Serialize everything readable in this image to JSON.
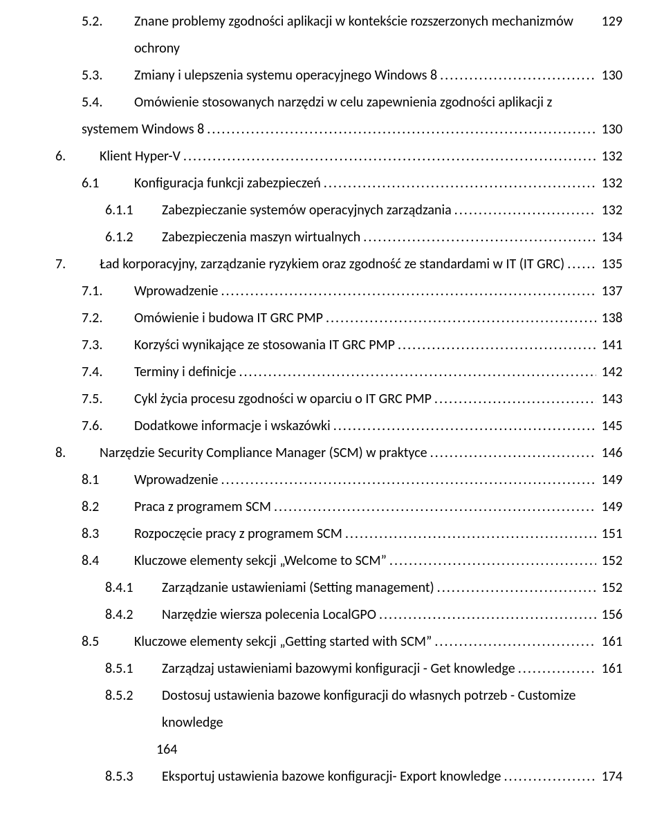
{
  "entries": [
    {
      "lvl": 2,
      "num": "5.2.",
      "title": "Znane problemy zgodności aplikacji w kontekście rozszerzonych mechanizmów ochrony",
      "page": "129",
      "nolead": true
    },
    {
      "lvl": 2,
      "num": "5.3.",
      "title": "Zmiany i ulepszenia systemu operacyjnego Windows 8",
      "page": "130"
    },
    {
      "lvl": 2,
      "num": "5.4.",
      "title": "Omówienie stosowanych narzędzi w celu zapewnienia zgodności aplikacji z systemem Windows 8",
      "page": "130",
      "wrap": true
    },
    {
      "lvl": 1,
      "num": "6.",
      "title": "Klient Hyper-V",
      "page": "132"
    },
    {
      "lvl": 2,
      "num": "6.1",
      "title": "Konfiguracja funkcji zabezpieczeń",
      "page": "132"
    },
    {
      "lvl": 3,
      "num": "6.1.1",
      "title": "Zabezpieczanie systemów operacyjnych zarządzania",
      "page": "132"
    },
    {
      "lvl": 3,
      "num": "6.1.2",
      "title": "Zabezpieczenia maszyn wirtualnych",
      "page": "134"
    },
    {
      "lvl": 1,
      "num": "7.",
      "title": "Ład korporacyjny, zarządzanie ryzykiem oraz zgodność ze standardami w IT (IT GRC)",
      "page": "135"
    },
    {
      "lvl": 2,
      "num": "7.1.",
      "title": "Wprowadzenie",
      "page": "137"
    },
    {
      "lvl": 2,
      "num": "7.2.",
      "title": "Omówienie i budowa IT GRC PMP",
      "page": "138"
    },
    {
      "lvl": 2,
      "num": "7.3.",
      "title": "Korzyści wynikające ze stosowania IT GRC PMP",
      "page": "141"
    },
    {
      "lvl": 2,
      "num": "7.4.",
      "title": "Terminy i definicje",
      "page": "142"
    },
    {
      "lvl": 2,
      "num": "7.5.",
      "title": "Cykl życia procesu zgodności w oparciu o IT GRC PMP",
      "page": "143"
    },
    {
      "lvl": 2,
      "num": "7.6.",
      "title": "Dodatkowe informacje i wskazówki",
      "page": "145"
    },
    {
      "lvl": 1,
      "num": "8.",
      "title": "Narzędzie Security Compliance Manager (SCM) w praktyce",
      "page": "146"
    },
    {
      "lvl": 2,
      "num": "8.1",
      "title": "Wprowadzenie",
      "page": "149"
    },
    {
      "lvl": 2,
      "num": "8.2",
      "title": "Praca z programem SCM",
      "page": "149"
    },
    {
      "lvl": 2,
      "num": "8.3",
      "title": "Rozpoczęcie pracy z programem SCM",
      "page": "151"
    },
    {
      "lvl": 2,
      "num": "8.4",
      "title": "Kluczowe elementy sekcji „Welcome to SCM”",
      "page": "152"
    },
    {
      "lvl": 3,
      "num": "8.4.1",
      "title": "Zarządzanie ustawieniami (Setting management)",
      "page": "152"
    },
    {
      "lvl": 3,
      "num": "8.4.2",
      "title": "Narzędzie wiersza polecenia LocalGPO",
      "page": "156"
    },
    {
      "lvl": 2,
      "num": "8.5",
      "title": "Kluczowe elementy sekcji „Getting started with SCM”",
      "page": "161"
    },
    {
      "lvl": 3,
      "num": "8.5.1",
      "title": "Zarządzaj ustawieniami bazowymi konfiguracji - Get knowledge",
      "page": "161"
    },
    {
      "lvl": 3,
      "num": "8.5.2",
      "title": "Dostosuj ustawienia bazowe konfiguracji do własnych potrzeb - Customize knowledge",
      "page": "164",
      "wrapbelow": true
    },
    {
      "lvl": 3,
      "num": "8.5.3",
      "title": "Eksportuj ustawienia bazowe konfiguracji- Export knowledge",
      "page": "174"
    }
  ]
}
